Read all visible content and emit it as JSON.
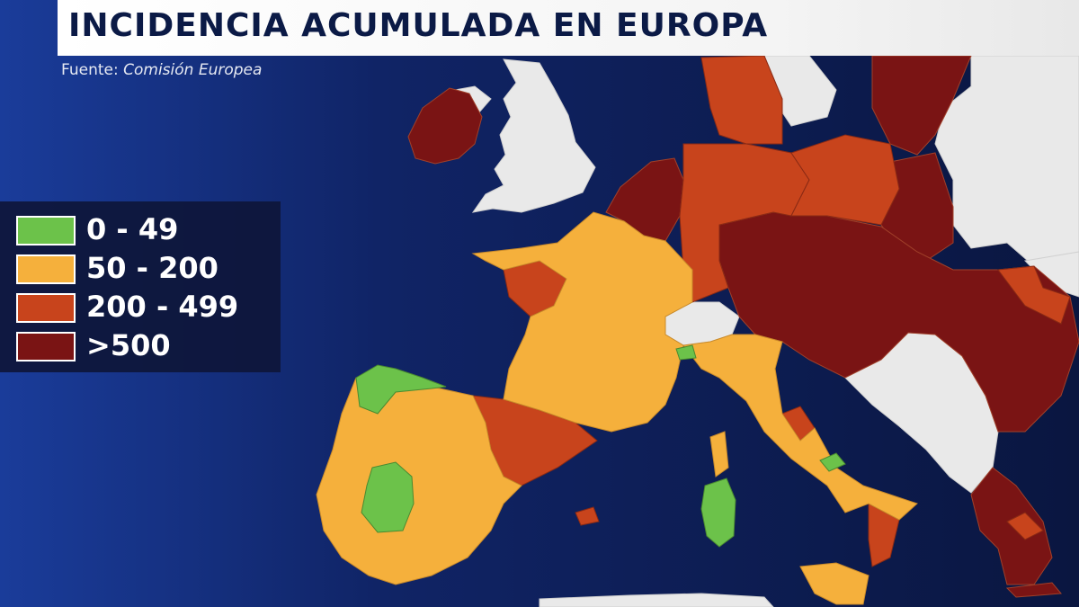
{
  "header": {
    "title": "INCIDENCIA ACUMULADA EN EUROPA",
    "source_label": "Fuente:",
    "source_name": "Comisión Europea"
  },
  "legend": {
    "items": [
      {
        "label": "0 - 49",
        "color": "#6cc24a"
      },
      {
        "label": "50 - 200",
        "color": "#f5b03c"
      },
      {
        "label": "200 - 499",
        "color": "#c8441c"
      },
      {
        "label": ">500",
        "color": "#7a1414"
      }
    ]
  },
  "colors": {
    "sea": "#0d1a4a",
    "no_data": "#e9e9e9",
    "borders": "#9a4a2a"
  }
}
